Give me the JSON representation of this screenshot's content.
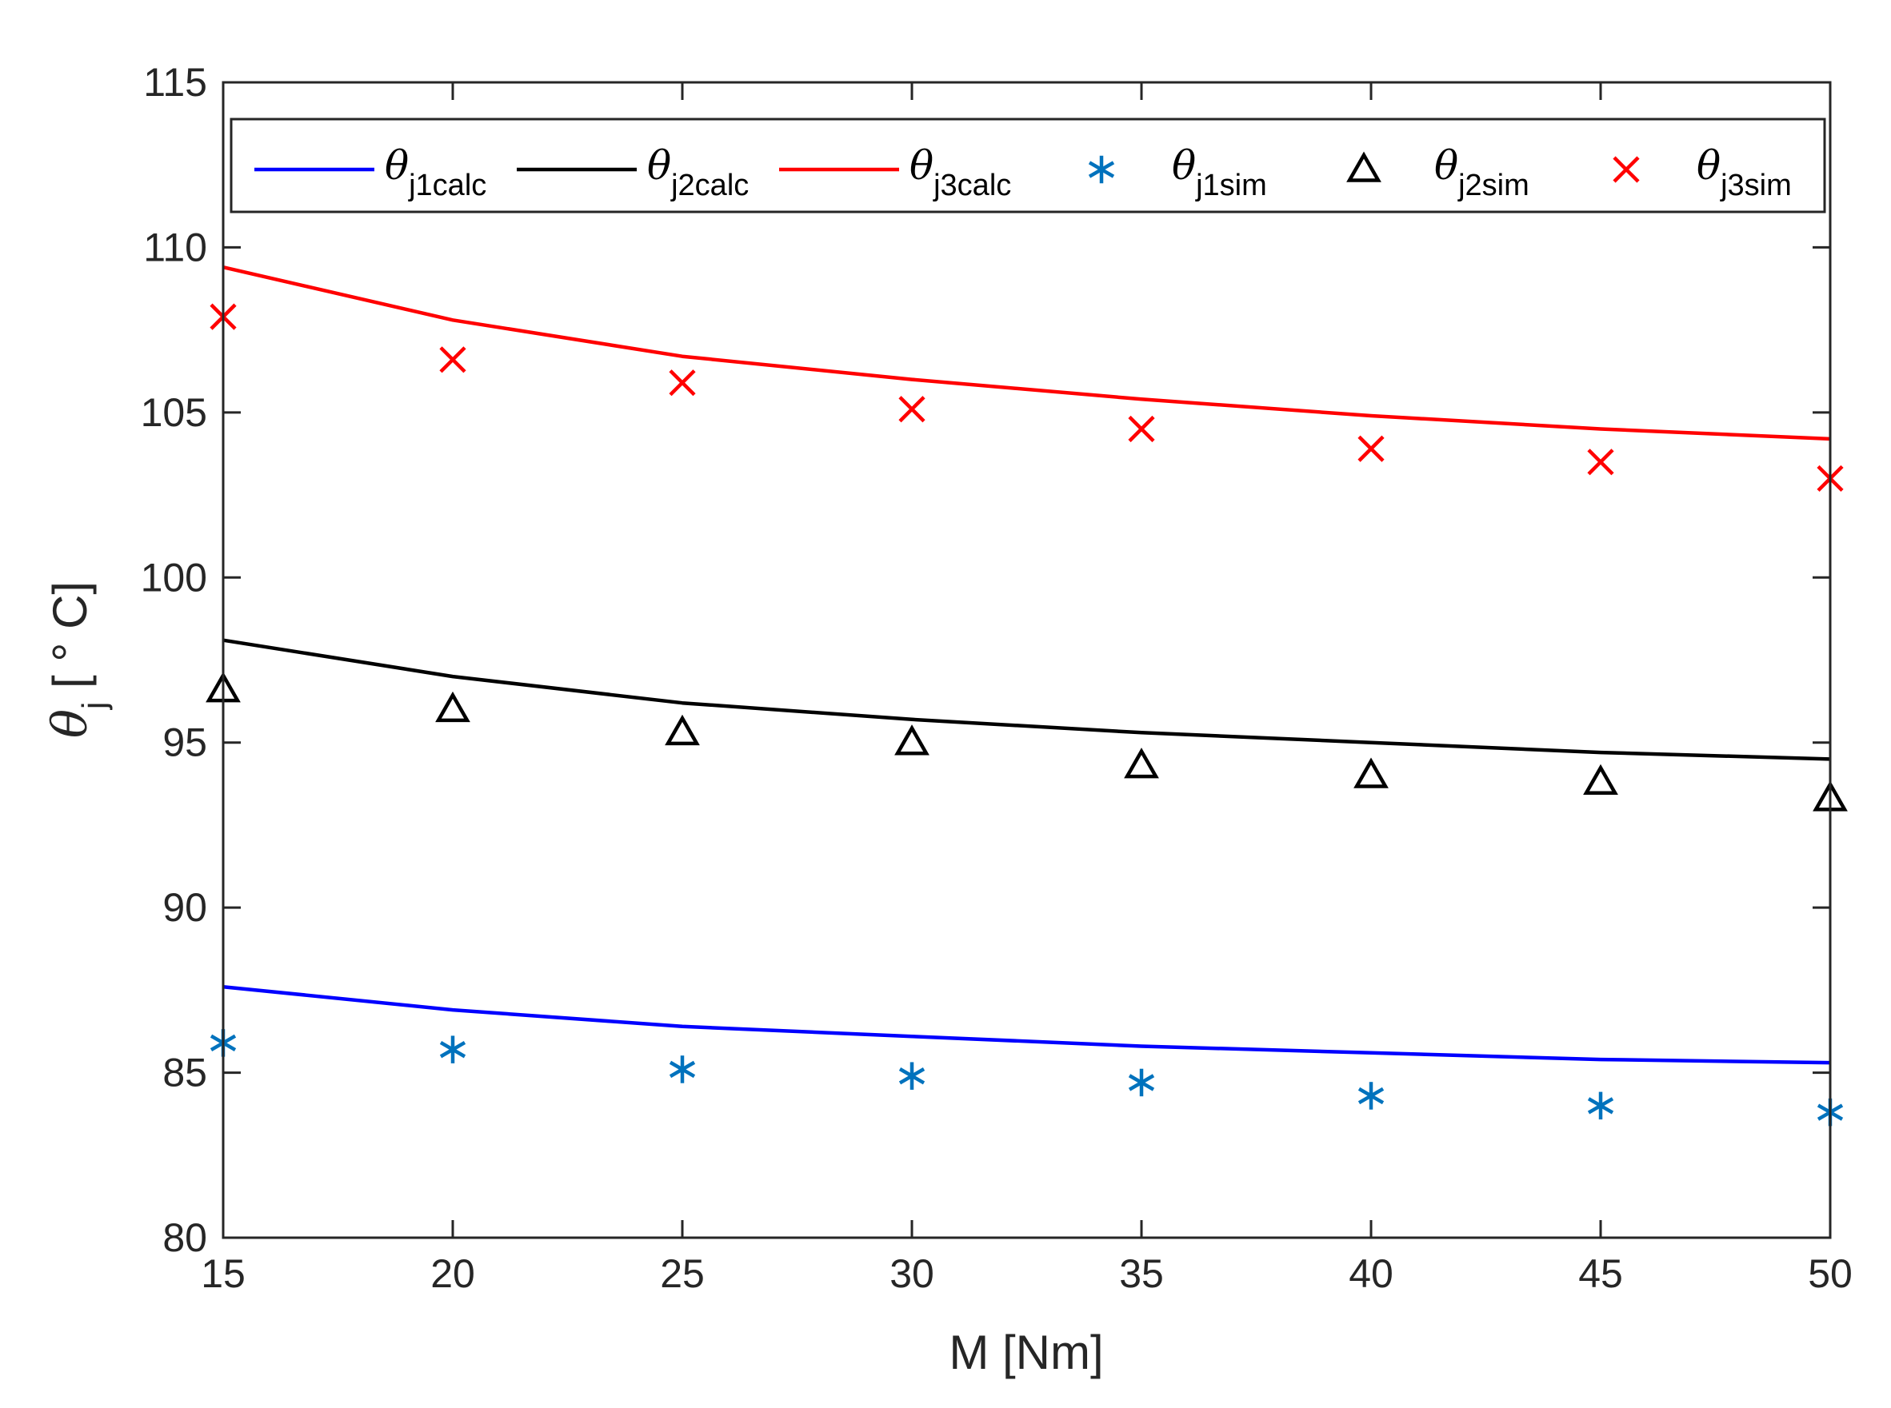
{
  "chart_data": {
    "type": "line",
    "title": "",
    "xlabel": "M [Nm]",
    "ylabel": {
      "symbol": "θ",
      "subscript": "j",
      "unit": " [ ° C]"
    },
    "xlim": [
      15,
      50
    ],
    "ylim": [
      80,
      115
    ],
    "xticks": [
      15,
      20,
      25,
      30,
      35,
      40,
      45,
      50
    ],
    "yticks": [
      80,
      85,
      90,
      95,
      100,
      105,
      110,
      115
    ],
    "grid": false,
    "legend_position": "top, horizontal",
    "x": [
      15,
      20,
      25,
      30,
      35,
      40,
      45,
      50
    ],
    "series": [
      {
        "name": "θj1calc",
        "symbol": "θ",
        "sub": "j1calc",
        "style": "line",
        "color": "#0000ff",
        "values": [
          87.6,
          86.9,
          86.4,
          86.1,
          85.8,
          85.6,
          85.4,
          85.3
        ]
      },
      {
        "name": "θj2calc",
        "symbol": "θ",
        "sub": "j2calc",
        "style": "line",
        "color": "#000000",
        "values": [
          98.1,
          97.0,
          96.2,
          95.7,
          95.3,
          95.0,
          94.7,
          94.5
        ]
      },
      {
        "name": "θj3calc",
        "symbol": "θ",
        "sub": "j3calc",
        "style": "line",
        "color": "#ff0000",
        "values": [
          109.4,
          107.8,
          106.7,
          106.0,
          105.4,
          104.9,
          104.5,
          104.2
        ]
      },
      {
        "name": "θj1sim",
        "symbol": "θ",
        "sub": "j1sim",
        "style": "marker",
        "marker": "asterisk",
        "color": "#0072bd",
        "values": [
          85.9,
          85.7,
          85.1,
          84.9,
          84.7,
          84.3,
          84.0,
          83.8
        ]
      },
      {
        "name": "θj2sim",
        "symbol": "θ",
        "sub": "j2sim",
        "style": "marker",
        "marker": "triangle",
        "color": "#000000",
        "values": [
          96.6,
          96.0,
          95.3,
          95.0,
          94.3,
          94.0,
          93.8,
          93.3
        ]
      },
      {
        "name": "θj3sim",
        "symbol": "θ",
        "sub": "j3sim",
        "style": "marker",
        "marker": "x",
        "color": "#ff0000",
        "values": [
          107.9,
          106.6,
          105.9,
          105.1,
          104.5,
          103.9,
          103.5,
          103.0
        ]
      }
    ]
  }
}
